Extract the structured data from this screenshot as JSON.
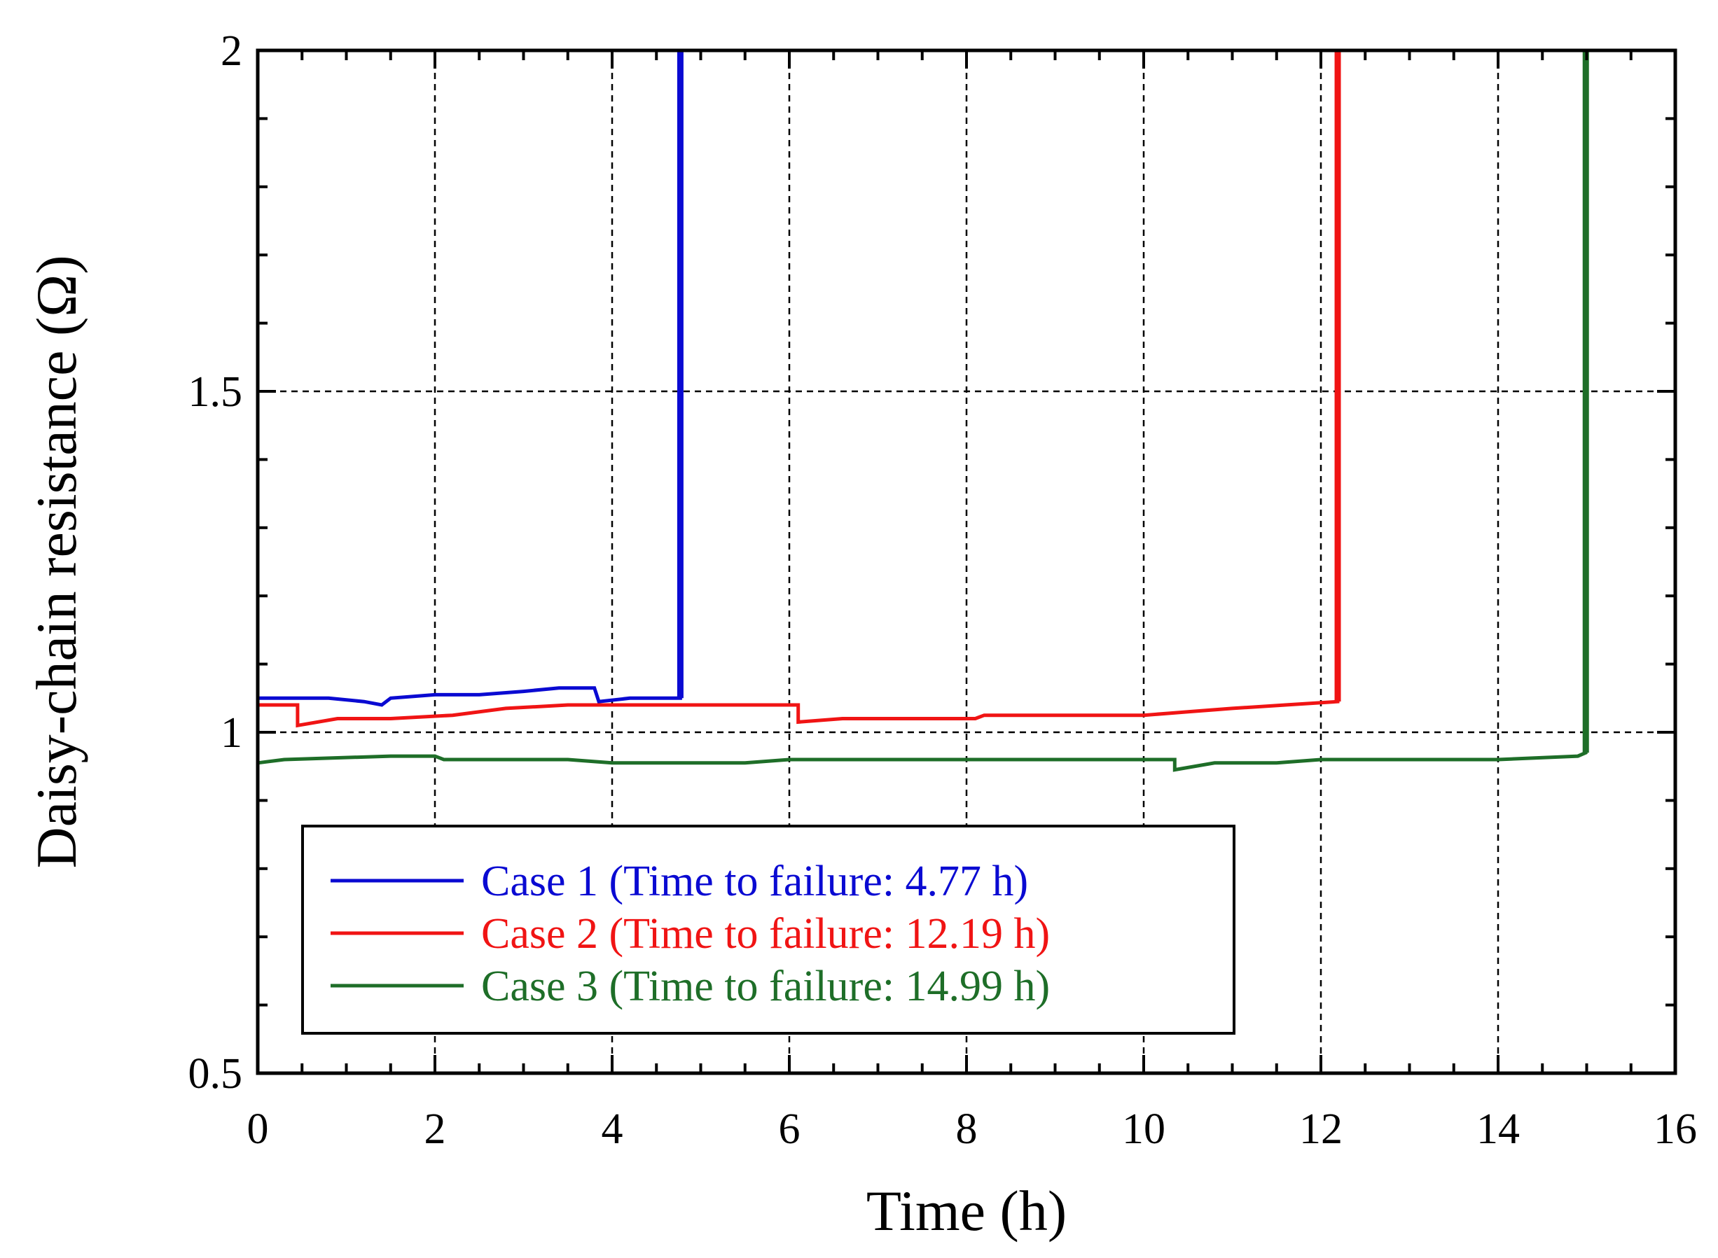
{
  "chart_data": {
    "type": "line",
    "title": "",
    "xlabel": "Time (h)",
    "ylabel": "Daisy-chain resistance (Ω)",
    "xlim": [
      0,
      16
    ],
    "ylim": [
      0.5,
      2
    ],
    "x_ticks": [
      0,
      2,
      4,
      6,
      8,
      10,
      12,
      14,
      16
    ],
    "x_tick_labels": [
      "0",
      "2",
      "4",
      "6",
      "8",
      "10",
      "12",
      "14",
      "16"
    ],
    "y_ticks": [
      0.5,
      1,
      1.5,
      2
    ],
    "y_tick_labels": [
      "0.5",
      "1",
      "1.5",
      "2"
    ],
    "grid": true,
    "legend_position": "bottom-left",
    "series": [
      {
        "name": "Case 1 (Time to failure: 4.77 h)",
        "color": "#0a0ad2",
        "points": [
          [
            0,
            1.05
          ],
          [
            0.4,
            1.05
          ],
          [
            0.8,
            1.05
          ],
          [
            1.2,
            1.045
          ],
          [
            1.4,
            1.04
          ],
          [
            1.5,
            1.05
          ],
          [
            2.0,
            1.055
          ],
          [
            2.5,
            1.055
          ],
          [
            3.0,
            1.06
          ],
          [
            3.4,
            1.065
          ],
          [
            3.8,
            1.065
          ],
          [
            3.85,
            1.045
          ],
          [
            4.2,
            1.05
          ],
          [
            4.77,
            1.05
          ],
          [
            4.77,
            2.0
          ]
        ]
      },
      {
        "name": "Case 2 (Time to failure: 12.19 h)",
        "color": "#f01414",
        "points": [
          [
            0,
            1.04
          ],
          [
            0.45,
            1.04
          ],
          [
            0.45,
            1.01
          ],
          [
            0.9,
            1.02
          ],
          [
            1.5,
            1.02
          ],
          [
            2.2,
            1.025
          ],
          [
            2.8,
            1.035
          ],
          [
            3.5,
            1.04
          ],
          [
            4.5,
            1.04
          ],
          [
            5.0,
            1.04
          ],
          [
            6.1,
            1.04
          ],
          [
            6.1,
            1.015
          ],
          [
            6.6,
            1.02
          ],
          [
            7.5,
            1.02
          ],
          [
            8.1,
            1.02
          ],
          [
            8.2,
            1.025
          ],
          [
            9.0,
            1.025
          ],
          [
            10.0,
            1.025
          ],
          [
            10.5,
            1.03
          ],
          [
            11.0,
            1.035
          ],
          [
            11.6,
            1.04
          ],
          [
            12.19,
            1.045
          ],
          [
            12.19,
            2.0
          ]
        ]
      },
      {
        "name": "Case 3 (Time to failure: 14.99 h)",
        "color": "#1e6e28",
        "points": [
          [
            0,
            0.955
          ],
          [
            0.3,
            0.96
          ],
          [
            1.5,
            0.965
          ],
          [
            2.0,
            0.965
          ],
          [
            2.1,
            0.96
          ],
          [
            3.5,
            0.96
          ],
          [
            4.0,
            0.955
          ],
          [
            5.5,
            0.955
          ],
          [
            6.0,
            0.96
          ],
          [
            7.0,
            0.96
          ],
          [
            9.0,
            0.96
          ],
          [
            10.0,
            0.96
          ],
          [
            10.35,
            0.96
          ],
          [
            10.35,
            0.945
          ],
          [
            10.8,
            0.955
          ],
          [
            11.5,
            0.955
          ],
          [
            12.0,
            0.96
          ],
          [
            14.0,
            0.96
          ],
          [
            14.9,
            0.965
          ],
          [
            14.99,
            0.97
          ],
          [
            14.99,
            2.0
          ]
        ]
      }
    ]
  }
}
